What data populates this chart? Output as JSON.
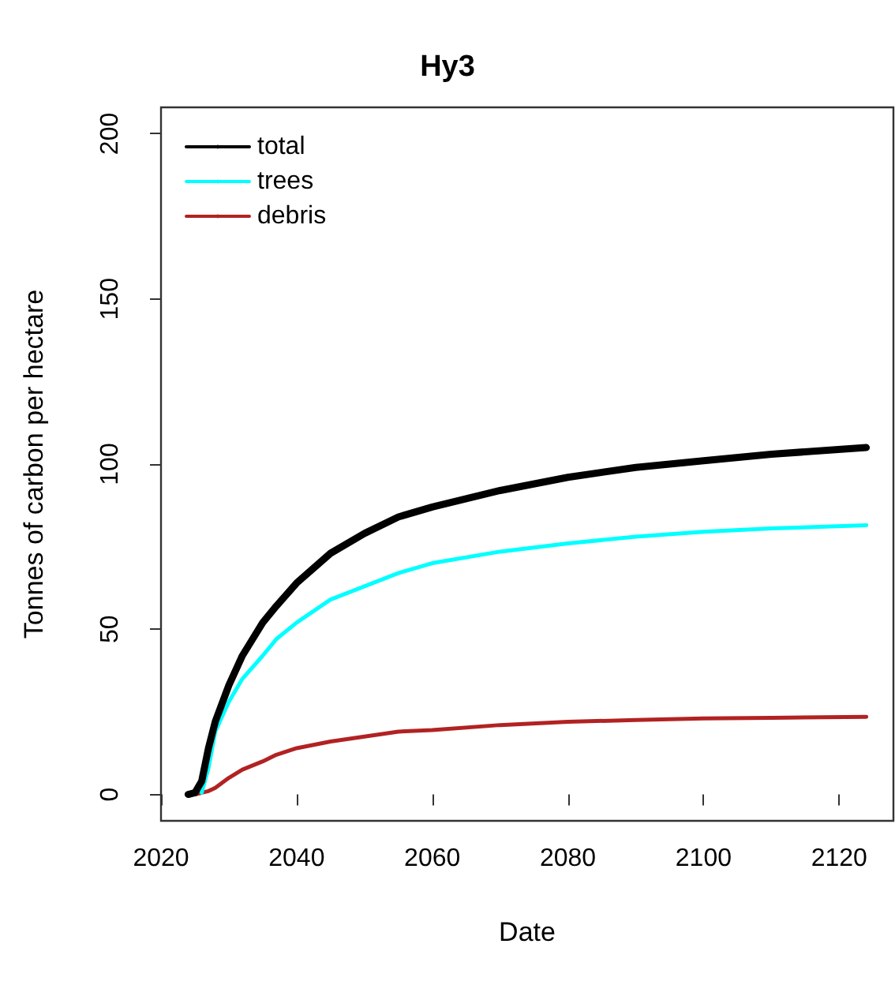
{
  "chart_data": {
    "type": "line",
    "title": "Hy3",
    "xlabel": "Date",
    "ylabel": "Tonnes of carbon per hectare",
    "xlim": [
      2020,
      2128
    ],
    "xticks": [
      2020,
      2040,
      2060,
      2080,
      2100,
      2120
    ],
    "ylim": [
      -8,
      208
    ],
    "yticks": [
      0,
      50,
      100,
      150,
      200
    ],
    "grid": false,
    "legend": "top left",
    "marker": "none",
    "line_style": "solid",
    "x": [
      2024,
      2025,
      2026,
      2027,
      2028,
      2030,
      2032,
      2035,
      2037,
      2040,
      2045,
      2050,
      2055,
      2060,
      2070,
      2080,
      2090,
      2100,
      2110,
      2124
    ],
    "series": [
      {
        "name": "total",
        "color": "#000000",
        "values": [
          0,
          0.5,
          4,
          14,
          22,
          33,
          42,
          52,
          57,
          64,
          73,
          79,
          84,
          87,
          92,
          96,
          99,
          101,
          103,
          105
        ]
      },
      {
        "name": "trees",
        "color": "#00ffff",
        "values": [
          null,
          null,
          0.5,
          8,
          19,
          28,
          35,
          42,
          47,
          52,
          59,
          63,
          67,
          70,
          73.5,
          76,
          78,
          79.5,
          80.5,
          81.5
        ]
      },
      {
        "name": "debris",
        "color": "#b22222",
        "values": [
          0,
          0,
          0.5,
          1,
          2,
          5,
          7.5,
          10,
          12,
          14,
          16,
          17.5,
          19,
          19.5,
          21,
          22,
          22.5,
          23,
          23.2,
          23.5
        ]
      }
    ]
  }
}
